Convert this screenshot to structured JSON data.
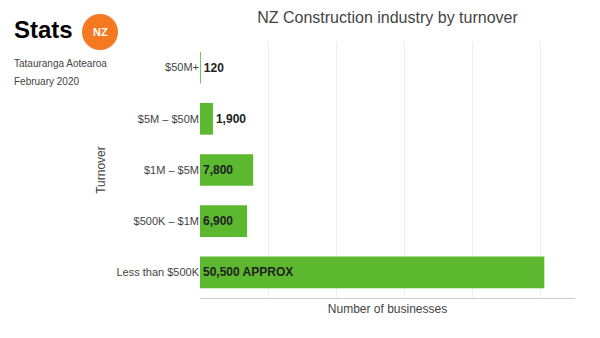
{
  "chart_data": {
    "type": "bar",
    "orientation": "horizontal",
    "title": "NZ Construction industry by turnover",
    "x_label": "Number of businesses",
    "y_label": "Turnover",
    "categories": [
      "Less than $500K",
      "$500K – $1M",
      "$1M – $5M",
      "$5M – $50M",
      "$50M+"
    ],
    "values": [
      50500,
      6900,
      7800,
      1900,
      120
    ],
    "value_labels": [
      "50,500 APPROX",
      "6,900",
      "7,800",
      "1,900",
      "120"
    ],
    "data_labels": true,
    "color": "#5cb82e",
    "xlim": [
      0,
      55000
    ],
    "xticks": [
      0,
      10000,
      20000,
      30000,
      40000,
      50000
    ],
    "grid": true,
    "tick_labels": "y",
    "annotations": [
      {
        "text": "Stats"
      },
      {
        "text": "NZ",
        "color": "#f47920"
      },
      {
        "text": "Tatauranga Aotearoa"
      },
      {
        "text": "February 2020"
      }
    ]
  }
}
